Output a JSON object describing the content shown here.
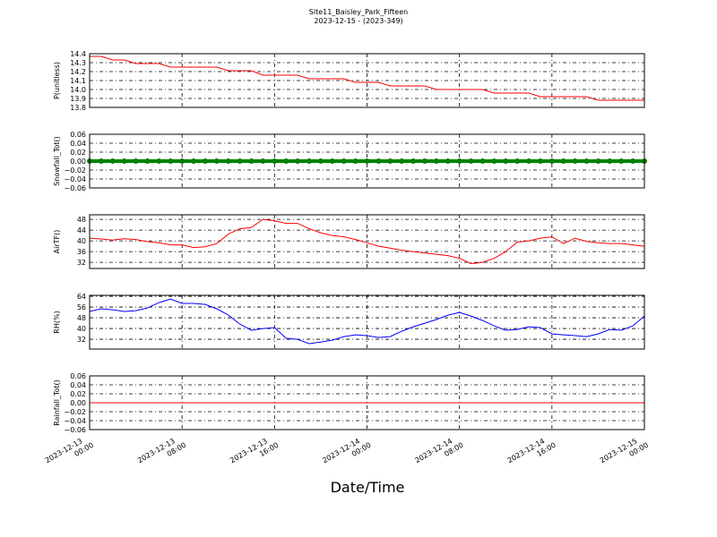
{
  "title": "Site11_Baisley_Park_Fifteen",
  "subtitle": "2023-12-15 - (2023-349)",
  "xlabel": "Date/Time",
  "x": [
    "2023-12-13 00:00",
    "2023-12-13 01:00",
    "2023-12-13 02:00",
    "2023-12-13 03:00",
    "2023-12-13 04:00",
    "2023-12-13 05:00",
    "2023-12-13 06:00",
    "2023-12-13 07:00",
    "2023-12-13 08:00",
    "2023-12-13 09:00",
    "2023-12-13 10:00",
    "2023-12-13 11:00",
    "2023-12-13 12:00",
    "2023-12-13 13:00",
    "2023-12-13 14:00",
    "2023-12-13 15:00",
    "2023-12-13 16:00",
    "2023-12-13 17:00",
    "2023-12-13 18:00",
    "2023-12-13 19:00",
    "2023-12-13 20:00",
    "2023-12-13 21:00",
    "2023-12-13 22:00",
    "2023-12-13 23:00",
    "2023-12-14 00:00",
    "2023-12-14 01:00",
    "2023-12-14 02:00",
    "2023-12-14 03:00",
    "2023-12-14 04:00",
    "2023-12-14 05:00",
    "2023-12-14 06:00",
    "2023-12-14 07:00",
    "2023-12-14 08:00",
    "2023-12-14 09:00",
    "2023-12-14 10:00",
    "2023-12-14 11:00",
    "2023-12-14 12:00",
    "2023-12-14 13:00",
    "2023-12-14 14:00",
    "2023-12-14 15:00",
    "2023-12-14 16:00",
    "2023-12-14 17:00",
    "2023-12-14 18:00",
    "2023-12-14 19:00",
    "2023-12-14 20:00",
    "2023-12-14 21:00",
    "2023-12-14 22:00",
    "2023-12-14 23:00",
    "2023-12-15 00:00"
  ],
  "xticks": [
    "2023-12-13 00:00",
    "2023-12-13 08:00",
    "2023-12-13 16:00",
    "2023-12-14 00:00",
    "2023-12-14 08:00",
    "2023-12-14 16:00",
    "2023-12-15 00:00"
  ],
  "chart_data": [
    {
      "type": "line",
      "ylabel": "P(unitless)",
      "grid": true,
      "ylim": [
        13.8,
        14.4
      ],
      "yticks": [
        13.8,
        13.9,
        {
          "value": 14,
          "label": "14.0"
        },
        14.1,
        14.2,
        14.3,
        14.4
      ],
      "series": [
        {
          "color": "#ff0000",
          "values": [
            14.37,
            14.37,
            14.33,
            14.33,
            14.29,
            14.29,
            14.29,
            14.25,
            14.25,
            14.25,
            14.25,
            14.25,
            14.21,
            14.21,
            14.21,
            14.16,
            14.16,
            14.16,
            14.16,
            14.12,
            14.12,
            14.12,
            14.12,
            14.08,
            14.08,
            14.08,
            14.04,
            14.04,
            14.04,
            14.04,
            14.0,
            14.0,
            14.0,
            14.0,
            14.0,
            13.96,
            13.96,
            13.96,
            13.96,
            13.92,
            13.92,
            13.92,
            13.92,
            13.92,
            13.88,
            13.88,
            13.88,
            13.88,
            13.88
          ]
        }
      ]
    },
    {
      "type": "scatter",
      "ylabel": "Snowfall_Tot()",
      "grid": true,
      "ylim": [
        -0.06,
        0.06
      ],
      "yticks": [
        {
          "value": -0.06,
          "label": "−0.06"
        },
        {
          "value": -0.04,
          "label": "−0.04"
        },
        {
          "value": -0.02,
          "label": "−0.02"
        },
        {
          "value": 0,
          "label": "0.00"
        },
        0.02,
        0.04,
        0.06
      ],
      "series": [
        {
          "color": "#008000",
          "values": [
            0,
            0,
            0,
            0,
            0,
            0,
            0,
            0,
            0,
            0,
            0,
            0,
            0,
            0,
            0,
            0,
            0,
            0,
            0,
            0,
            0,
            0,
            0,
            0,
            0,
            0,
            0,
            0,
            0,
            0,
            0,
            0,
            0,
            0,
            0,
            0,
            0,
            0,
            0,
            0,
            0,
            0,
            0,
            0,
            0,
            0,
            0,
            0,
            0
          ]
        }
      ]
    },
    {
      "type": "line",
      "ylabel": "AirTF()",
      "grid": true,
      "ylim": [
        29.7,
        49.7
      ],
      "yticks": [
        32,
        36,
        40,
        44,
        48
      ],
      "series": [
        {
          "color": "#ff0000",
          "values": [
            41,
            40.7,
            40.3,
            40.8,
            40.5,
            39.7,
            39.3,
            38.5,
            38.5,
            37.5,
            37.8,
            39,
            42.5,
            44.5,
            45,
            48,
            47.5,
            46.5,
            46.5,
            44.5,
            43,
            42,
            41.5,
            40.5,
            39.3,
            38,
            37.3,
            36.5,
            36,
            35.5,
            35,
            34.5,
            33.5,
            31.5,
            32,
            33.5,
            36,
            39.5,
            40,
            41,
            41.5,
            39,
            41,
            39.8,
            39.3,
            39,
            39,
            38.5,
            38
          ]
        }
      ]
    },
    {
      "type": "line",
      "ylabel": "RH(%)",
      "grid": true,
      "ylim": [
        24.7,
        64.7
      ],
      "yticks": [
        32,
        40,
        48,
        56,
        64
      ],
      "series": [
        {
          "color": "#0000ff",
          "values": [
            52.7,
            54.7,
            54,
            52.7,
            53.3,
            55.3,
            59.3,
            62,
            58.7,
            58.7,
            58,
            54.7,
            50,
            43.3,
            38.7,
            40,
            40.7,
            32.7,
            32,
            28.7,
            30,
            31.3,
            34,
            35.3,
            34.7,
            33.3,
            34,
            38,
            41.3,
            44,
            46.7,
            50,
            52,
            49.3,
            46,
            42,
            38.7,
            39.3,
            41.3,
            40.7,
            36,
            35.3,
            34.7,
            34,
            36,
            39.3,
            38.7,
            42,
            49.3
          ]
        }
      ]
    },
    {
      "type": "line",
      "ylabel": "Rainfall_Tot()",
      "grid": true,
      "ylim": [
        -0.06,
        0.06
      ],
      "yticks": [
        {
          "value": -0.06,
          "label": "−0.06"
        },
        {
          "value": -0.04,
          "label": "−0.04"
        },
        {
          "value": -0.02,
          "label": "−0.02"
        },
        {
          "value": 0,
          "label": "0.00"
        },
        0.02,
        0.04,
        0.06
      ],
      "series": [
        {
          "color": "#ff0000",
          "values": [
            0,
            0,
            0,
            0,
            0,
            0,
            0,
            0,
            0,
            0,
            0,
            0,
            0,
            0,
            0,
            0,
            0,
            0,
            0,
            0,
            0,
            0,
            0,
            0,
            0,
            0,
            0,
            0,
            0,
            0,
            0,
            0,
            0,
            0,
            0,
            0,
            0,
            0,
            0,
            0,
            0,
            0,
            0,
            0,
            0,
            0,
            0,
            0,
            0
          ]
        }
      ]
    }
  ]
}
